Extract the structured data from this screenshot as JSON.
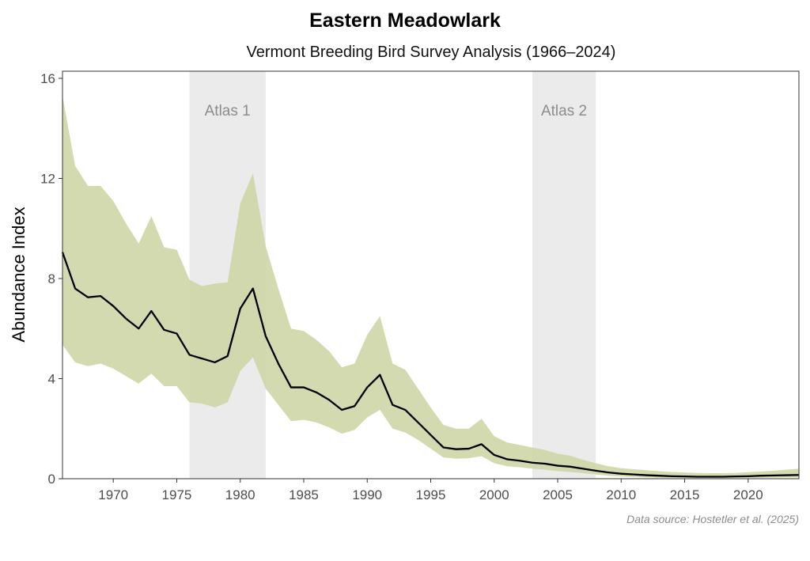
{
  "chart_data": {
    "type": "line",
    "title": "Eastern Meadowlark",
    "subtitle": "Vermont Breeding Bird Survey Analysis (1966–2024)",
    "xlabel": "",
    "ylabel": "Abundance Index",
    "caption": "Data source: Hostetler et al. (2025)",
    "xlim": [
      1966,
      2024
    ],
    "ylim": [
      0,
      16
    ],
    "xticks": [
      1970,
      1975,
      1980,
      1985,
      1990,
      1995,
      2000,
      2005,
      2010,
      2015,
      2020
    ],
    "yticks": [
      0,
      4,
      8,
      12,
      16
    ],
    "grid": false,
    "colors": {
      "ribbon": "#cfd6a6",
      "line": "#000000",
      "band": "#ebebeb",
      "band_label": "#8c8c8c"
    },
    "shaded_periods": [
      {
        "label": "Atlas 1",
        "start": 1976,
        "end": 1982
      },
      {
        "label": "Atlas 2",
        "start": 2003,
        "end": 2008
      }
    ],
    "x": [
      1966,
      1967,
      1968,
      1969,
      1970,
      1971,
      1972,
      1973,
      1974,
      1975,
      1976,
      1977,
      1978,
      1979,
      1980,
      1981,
      1982,
      1983,
      1984,
      1985,
      1986,
      1987,
      1988,
      1989,
      1990,
      1991,
      1992,
      1993,
      1994,
      1995,
      1996,
      1997,
      1998,
      1999,
      2000,
      2001,
      2002,
      2003,
      2004,
      2005,
      2006,
      2007,
      2008,
      2009,
      2010,
      2011,
      2012,
      2013,
      2014,
      2015,
      2016,
      2017,
      2018,
      2019,
      2020,
      2021,
      2022,
      2023,
      2024
    ],
    "index": [
      9.05,
      7.6,
      7.25,
      7.3,
      6.9,
      6.4,
      6.0,
      6.7,
      5.95,
      5.8,
      4.95,
      4.8,
      4.65,
      4.9,
      6.8,
      7.6,
      5.7,
      4.6,
      3.65,
      3.65,
      3.45,
      3.15,
      2.75,
      2.9,
      3.65,
      4.15,
      2.95,
      2.75,
      2.25,
      1.75,
      1.25,
      1.18,
      1.2,
      1.38,
      0.95,
      0.78,
      0.72,
      0.64,
      0.6,
      0.52,
      0.48,
      0.4,
      0.32,
      0.25,
      0.2,
      0.17,
      0.14,
      0.12,
      0.1,
      0.09,
      0.08,
      0.08,
      0.08,
      0.09,
      0.1,
      0.12,
      0.13,
      0.14,
      0.15
    ],
    "upper": [
      15.3,
      12.5,
      11.7,
      11.7,
      11.1,
      10.2,
      9.4,
      10.5,
      9.25,
      9.15,
      7.95,
      7.7,
      7.8,
      7.85,
      11.0,
      12.2,
      9.3,
      7.6,
      6.0,
      5.9,
      5.55,
      5.1,
      4.45,
      4.6,
      5.75,
      6.5,
      4.6,
      4.35,
      3.6,
      2.85,
      2.15,
      2.0,
      2.0,
      2.4,
      1.7,
      1.45,
      1.35,
      1.25,
      1.15,
      1.0,
      0.92,
      0.75,
      0.62,
      0.5,
      0.42,
      0.38,
      0.34,
      0.3,
      0.27,
      0.25,
      0.23,
      0.22,
      0.22,
      0.23,
      0.26,
      0.29,
      0.32,
      0.36,
      0.4
    ],
    "lower": [
      5.35,
      4.65,
      4.5,
      4.6,
      4.4,
      4.1,
      3.8,
      4.2,
      3.7,
      3.7,
      3.05,
      3.0,
      2.85,
      3.05,
      4.3,
      4.85,
      3.6,
      2.95,
      2.3,
      2.35,
      2.25,
      2.05,
      1.8,
      1.95,
      2.45,
      2.75,
      2.0,
      1.85,
      1.55,
      1.2,
      0.85,
      0.8,
      0.82,
      0.9,
      0.62,
      0.5,
      0.46,
      0.4,
      0.36,
      0.3,
      0.27,
      0.22,
      0.17,
      0.12,
      0.09,
      0.07,
      0.05,
      0.04,
      0.03,
      0.03,
      0.02,
      0.02,
      0.02,
      0.03,
      0.03,
      0.04,
      0.04,
      0.05,
      0.05
    ]
  }
}
